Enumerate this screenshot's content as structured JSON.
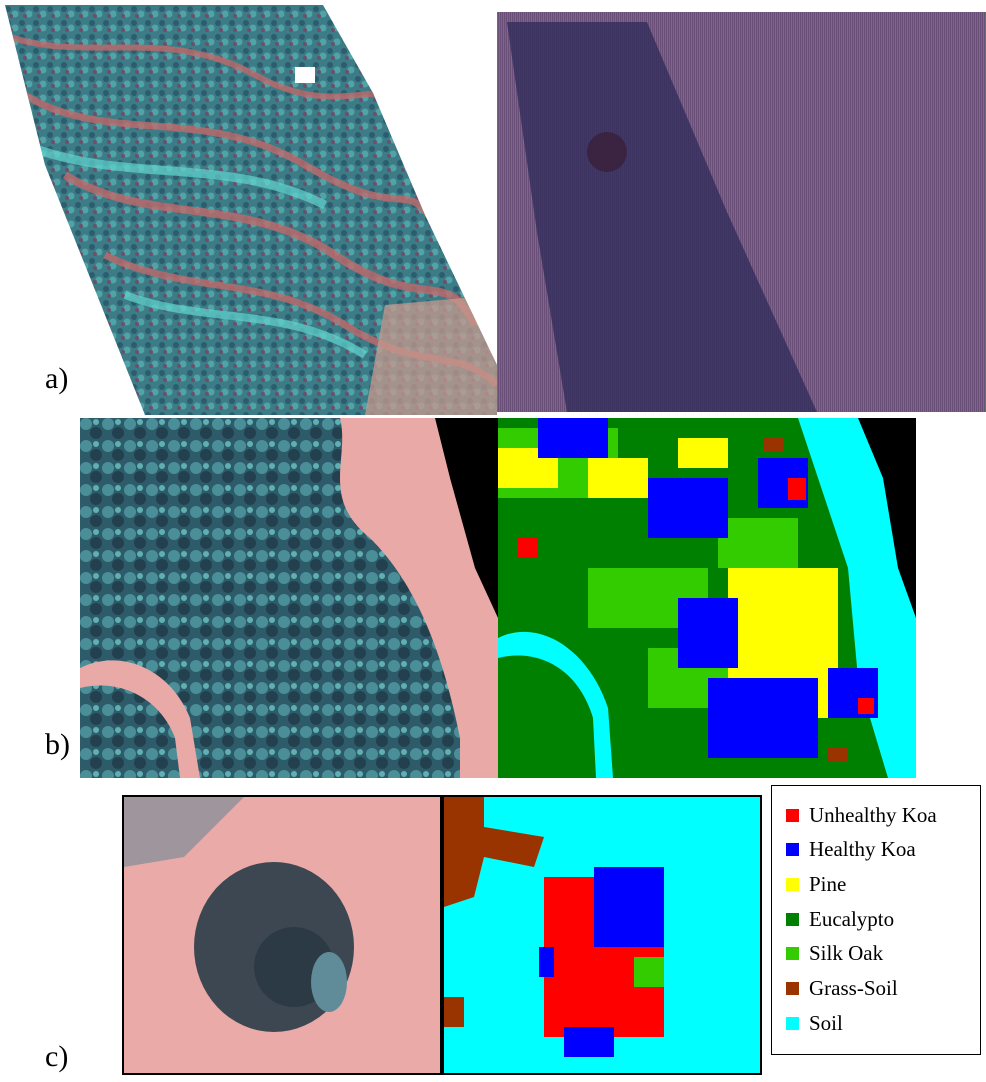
{
  "panel_labels": {
    "a": "a)",
    "b": "b)",
    "c": "c)"
  },
  "legend": {
    "items": [
      {
        "label": "Unhealthy Koa",
        "color": "#ff0000"
      },
      {
        "label": "Healthy Koa",
        "color": "#0000ff"
      },
      {
        "label": "Pine",
        "color": "#ffff00"
      },
      {
        "label": "Eucalypto",
        "color": "#008000"
      },
      {
        "label": "Silk Oak",
        "color": "#33cc00"
      },
      {
        "label": "Grass-Soil",
        "color": "#993300"
      },
      {
        "label": "Soil",
        "color": "#00ffff"
      }
    ]
  }
}
